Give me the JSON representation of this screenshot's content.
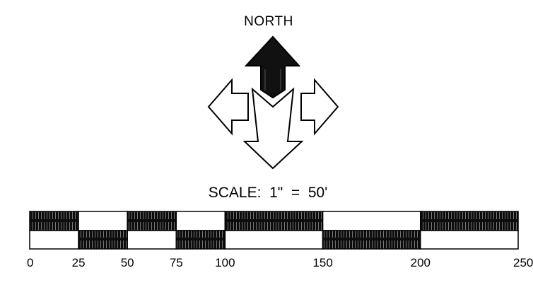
{
  "compass": {
    "label": "NORTH",
    "icon": "north-arrow-icon"
  },
  "scale": {
    "title": "SCALE:  1\"  =  50'",
    "ticks": [
      "0",
      "25",
      "50",
      "75",
      "100",
      "150",
      "200",
      "250"
    ],
    "tick_values": [
      0,
      25,
      50,
      75,
      100,
      150,
      200,
      250
    ],
    "fill_color": "#1a1a1a",
    "line_color": "#000000"
  }
}
